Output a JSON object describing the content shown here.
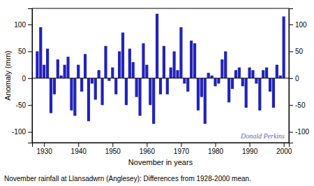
{
  "chart_data": {
    "type": "bar",
    "title": "November rainfall at Llansadwrn (Anglesey): Differences from 1928-2000 mean.",
    "x_label": "November in years",
    "y_label": "Anomaly (mm)",
    "x": [
      1928,
      1929,
      1930,
      1931,
      1932,
      1933,
      1934,
      1935,
      1936,
      1937,
      1938,
      1939,
      1940,
      1941,
      1942,
      1943,
      1944,
      1945,
      1946,
      1947,
      1948,
      1949,
      1950,
      1951,
      1952,
      1953,
      1954,
      1955,
      1956,
      1957,
      1958,
      1959,
      1960,
      1961,
      1962,
      1963,
      1964,
      1965,
      1966,
      1967,
      1968,
      1969,
      1970,
      1971,
      1972,
      1973,
      1974,
      1975,
      1976,
      1977,
      1978,
      1979,
      1980,
      1981,
      1982,
      1983,
      1984,
      1985,
      1986,
      1987,
      1988,
      1989,
      1990,
      1991,
      1992,
      1993,
      1994,
      1995,
      1996,
      1997,
      1998,
      1999,
      2000
    ],
    "values": [
      50,
      95,
      25,
      55,
      -65,
      -30,
      35,
      5,
      25,
      40,
      -60,
      -70,
      25,
      -25,
      45,
      -80,
      -10,
      -40,
      15,
      -50,
      60,
      -5,
      20,
      -30,
      50,
      85,
      -50,
      55,
      30,
      -35,
      -70,
      65,
      25,
      -50,
      -85,
      120,
      -30,
      60,
      -30,
      20,
      50,
      15,
      95,
      -10,
      -25,
      70,
      65,
      -60,
      -35,
      -85,
      10,
      5,
      -15,
      -10,
      35,
      50,
      -45,
      -20,
      15,
      20,
      -15,
      -55,
      20,
      15,
      -10,
      -60,
      15,
      20,
      -25,
      -55,
      25,
      5,
      115
    ],
    "color": "#2222bb",
    "xlim": [
      1926.5,
      2001.5
    ],
    "xticks": [
      1930,
      1940,
      1950,
      1960,
      1970,
      1980,
      1990,
      2000
    ],
    "ylim": [
      -120,
      130
    ],
    "yticks": [
      -100,
      -50,
      0,
      50,
      100
    ],
    "y2lim": [
      -120,
      130
    ],
    "y2ticks": [
      -100,
      -50,
      0,
      50,
      100
    ],
    "annotations": [
      {
        "text": "Donald Perkins",
        "color": "#6666bb"
      }
    ]
  }
}
